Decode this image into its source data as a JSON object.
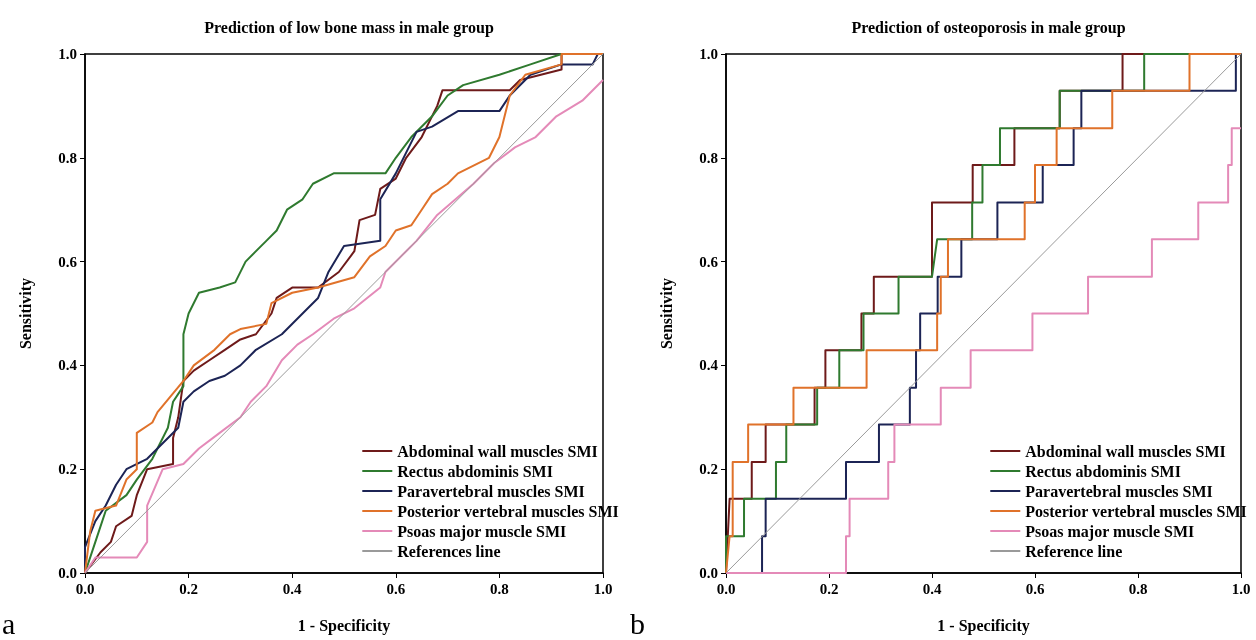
{
  "chart_data": [
    {
      "type": "line",
      "title": "Prediction of low bone mass in male group",
      "xlabel": "1 - Specificity",
      "ylabel": "Sensitivity",
      "annotations": [
        "a"
      ],
      "xlim": [
        0,
        1
      ],
      "ylim": [
        0,
        1
      ],
      "xticks": [
        {
          "value": 0,
          "label": "0.0"
        },
        {
          "value": 0.2,
          "label": "0.2"
        },
        {
          "value": 0.4,
          "label": "0.4"
        },
        {
          "value": 0.6,
          "label": "0.6"
        },
        {
          "value": 0.8,
          "label": "0.8"
        },
        {
          "value": 1,
          "label": "1.0"
        }
      ],
      "yticks": [
        {
          "value": 0,
          "label": "0.0"
        },
        {
          "value": 0.2,
          "label": "0.2"
        },
        {
          "value": 0.4,
          "label": "0.4"
        },
        {
          "value": 0.6,
          "label": "0.6"
        },
        {
          "value": 0.8,
          "label": "0.8"
        },
        {
          "value": 1,
          "label": "1.0"
        }
      ],
      "grid": false,
      "legend": "bottom right",
      "marker": "none",
      "series": [
        {
          "name": "Abdominal wall muscles SMI",
          "color": "#6e1a1a",
          "x": [
            0,
            0.03,
            0.05,
            0.06,
            0.09,
            0.1,
            0.12,
            0.17,
            0.17,
            0.18,
            0.19,
            0.21,
            0.24,
            0.27,
            0.3,
            0.33,
            0.36,
            0.37,
            0.4,
            0.45,
            0.49,
            0.52,
            0.53,
            0.56,
            0.57,
            0.6,
            0.62,
            0.65,
            0.68,
            0.69,
            0.82,
            0.84,
            0.92,
            0.92,
            1
          ],
          "values": [
            0,
            0.04,
            0.06,
            0.09,
            0.11,
            0.15,
            0.2,
            0.21,
            0.26,
            0.3,
            0.37,
            0.39,
            0.41,
            0.43,
            0.45,
            0.46,
            0.5,
            0.53,
            0.55,
            0.55,
            0.58,
            0.62,
            0.68,
            0.69,
            0.74,
            0.76,
            0.8,
            0.84,
            0.9,
            0.93,
            0.93,
            0.95,
            0.97,
            1,
            1
          ]
        },
        {
          "name": "Rectus abdominis SMI",
          "color": "#2f7a2f",
          "x": [
            0,
            0.02,
            0.04,
            0.08,
            0.1,
            0.13,
            0.16,
            0.17,
            0.19,
            0.19,
            0.2,
            0.22,
            0.26,
            0.29,
            0.31,
            0.35,
            0.37,
            0.39,
            0.42,
            0.44,
            0.48,
            0.58,
            0.6,
            0.63,
            0.67,
            0.7,
            0.73,
            0.8,
            0.86,
            0.92,
            1
          ],
          "values": [
            0,
            0.06,
            0.12,
            0.15,
            0.18,
            0.22,
            0.28,
            0.33,
            0.36,
            0.46,
            0.5,
            0.54,
            0.55,
            0.56,
            0.6,
            0.64,
            0.66,
            0.7,
            0.72,
            0.75,
            0.77,
            0.77,
            0.8,
            0.84,
            0.88,
            0.92,
            0.94,
            0.96,
            0.98,
            1,
            1
          ]
        },
        {
          "name": "Paravertebral muscles SMI",
          "color": "#1c2455",
          "x": [
            0,
            0,
            0.02,
            0.04,
            0.06,
            0.08,
            0.12,
            0.15,
            0.18,
            0.19,
            0.21,
            0.24,
            0.27,
            0.3,
            0.33,
            0.38,
            0.42,
            0.45,
            0.47,
            0.5,
            0.57,
            0.57,
            0.6,
            0.62,
            0.64,
            0.67,
            0.72,
            0.8,
            0.82,
            0.86,
            0.92,
            0.98,
            0.99,
            1
          ],
          "values": [
            0,
            0.05,
            0.1,
            0.13,
            0.17,
            0.2,
            0.22,
            0.25,
            0.28,
            0.33,
            0.35,
            0.37,
            0.38,
            0.4,
            0.43,
            0.46,
            0.5,
            0.53,
            0.58,
            0.63,
            0.64,
            0.72,
            0.77,
            0.81,
            0.85,
            0.86,
            0.89,
            0.89,
            0.92,
            0.96,
            0.98,
            0.98,
            1,
            1
          ]
        },
        {
          "name": "Posterior vertebral muscles SMI",
          "color": "#e0722a",
          "x": [
            0,
            0.01,
            0.02,
            0.06,
            0.08,
            0.1,
            0.1,
            0.13,
            0.14,
            0.19,
            0.21,
            0.25,
            0.28,
            0.3,
            0.35,
            0.36,
            0.4,
            0.45,
            0.52,
            0.55,
            0.58,
            0.6,
            0.63,
            0.65,
            0.67,
            0.7,
            0.72,
            0.78,
            0.8,
            0.81,
            0.82,
            0.85,
            0.92,
            0.92,
            1
          ],
          "values": [
            0,
            0.08,
            0.12,
            0.13,
            0.18,
            0.2,
            0.27,
            0.29,
            0.31,
            0.37,
            0.4,
            0.43,
            0.46,
            0.47,
            0.48,
            0.52,
            0.54,
            0.55,
            0.57,
            0.61,
            0.63,
            0.66,
            0.67,
            0.7,
            0.73,
            0.75,
            0.77,
            0.8,
            0.84,
            0.88,
            0.92,
            0.96,
            0.98,
            1,
            1
          ]
        },
        {
          "name": "Psoas major muscle SMI",
          "color": "#e48ab8",
          "x": [
            0,
            0.02,
            0.1,
            0.12,
            0.12,
            0.15,
            0.19,
            0.22,
            0.26,
            0.3,
            0.32,
            0.35,
            0.38,
            0.41,
            0.44,
            0.48,
            0.52,
            0.57,
            0.58,
            0.62,
            0.64,
            0.68,
            0.75,
            0.79,
            0.83,
            0.87,
            0.91,
            0.96,
            1
          ],
          "values": [
            0,
            0.03,
            0.03,
            0.06,
            0.13,
            0.2,
            0.21,
            0.24,
            0.27,
            0.3,
            0.33,
            0.36,
            0.41,
            0.44,
            0.46,
            0.49,
            0.51,
            0.55,
            0.58,
            0.62,
            0.64,
            0.69,
            0.75,
            0.79,
            0.82,
            0.84,
            0.88,
            0.91,
            0.95
          ]
        },
        {
          "name": "References line",
          "color": "#9a9a9a",
          "x": [
            0,
            1
          ],
          "values": [
            0,
            1
          ]
        }
      ]
    },
    {
      "type": "line",
      "title": "Prediction of osteoporosis in male group",
      "xlabel": "1 - Specificity",
      "ylabel": "Sensitivity",
      "annotations": [
        "b"
      ],
      "xlim": [
        0,
        1
      ],
      "ylim": [
        0,
        1
      ],
      "xticks": [
        {
          "value": 0,
          "label": "0.0"
        },
        {
          "value": 0.2,
          "label": "0.2"
        },
        {
          "value": 0.4,
          "label": "0.4"
        },
        {
          "value": 0.6,
          "label": "0.6"
        },
        {
          "value": 0.8,
          "label": "0.8"
        },
        {
          "value": 1,
          "label": "1.0"
        }
      ],
      "yticks": [
        {
          "value": 0,
          "label": "0.0"
        },
        {
          "value": 0.2,
          "label": "0.2"
        },
        {
          "value": 0.4,
          "label": "0.4"
        },
        {
          "value": 0.6,
          "label": "0.6"
        },
        {
          "value": 0.8,
          "label": "0.8"
        },
        {
          "value": 1,
          "label": "1.0"
        }
      ],
      "grid": false,
      "legend": "bottom right",
      "marker": "none",
      "series": [
        {
          "name": "Abdominal wall muscles SMI",
          "color": "#6e1a1a",
          "x": [
            0,
            0.007,
            0.05,
            0.05,
            0.077,
            0.077,
            0.172,
            0.172,
            0.193,
            0.193,
            0.263,
            0.263,
            0.287,
            0.287,
            0.4,
            0.4,
            0.479,
            0.479,
            0.56,
            0.56,
            0.648,
            0.648,
            0.77,
            0.77,
            1
          ],
          "values": [
            0,
            0.143,
            0.143,
            0.214,
            0.214,
            0.286,
            0.286,
            0.357,
            0.357,
            0.429,
            0.429,
            0.5,
            0.5,
            0.571,
            0.571,
            0.714,
            0.714,
            0.786,
            0.786,
            0.857,
            0.857,
            0.929,
            0.929,
            1,
            1
          ]
        },
        {
          "name": "Rectus abdominis SMI",
          "color": "#2f7a2f",
          "x": [
            0,
            0,
            0.035,
            0.035,
            0.097,
            0.097,
            0.117,
            0.117,
            0.177,
            0.177,
            0.22,
            0.22,
            0.267,
            0.267,
            0.335,
            0.335,
            0.4,
            0.41,
            0.478,
            0.478,
            0.498,
            0.498,
            0.532,
            0.532,
            0.648,
            0.648,
            0.812,
            0.812,
            1
          ],
          "values": [
            0,
            0.071,
            0.071,
            0.143,
            0.143,
            0.214,
            0.214,
            0.286,
            0.286,
            0.357,
            0.357,
            0.429,
            0.429,
            0.5,
            0.5,
            0.571,
            0.571,
            0.643,
            0.643,
            0.714,
            0.714,
            0.786,
            0.786,
            0.857,
            0.857,
            0.929,
            0.929,
            1,
            1
          ]
        },
        {
          "name": "Paravertebral muscles SMI",
          "color": "#1c2455",
          "x": [
            0,
            0.07,
            0.07,
            0.077,
            0.077,
            0.233,
            0.233,
            0.297,
            0.297,
            0.357,
            0.357,
            0.369,
            0.369,
            0.377,
            0.377,
            0.411,
            0.411,
            0.457,
            0.457,
            0.527,
            0.527,
            0.615,
            0.615,
            0.675,
            0.675,
            0.69,
            0.69,
            0.99,
            0.99,
            1
          ],
          "values": [
            0,
            0,
            0.071,
            0.071,
            0.143,
            0.143,
            0.214,
            0.214,
            0.286,
            0.286,
            0.357,
            0.357,
            0.429,
            0.429,
            0.5,
            0.5,
            0.571,
            0.571,
            0.643,
            0.643,
            0.714,
            0.714,
            0.786,
            0.786,
            0.857,
            0.857,
            0.929,
            0.929,
            1,
            1
          ]
        },
        {
          "name": "Posterior vertebral muscles SMI",
          "color": "#e0722a",
          "x": [
            0,
            0.007,
            0.013,
            0.013,
            0.043,
            0.043,
            0.131,
            0.131,
            0.273,
            0.273,
            0.41,
            0.41,
            0.417,
            0.417,
            0.431,
            0.431,
            0.58,
            0.58,
            0.6,
            0.6,
            0.642,
            0.642,
            0.75,
            0.75,
            0.9,
            0.9,
            1
          ],
          "values": [
            0,
            0.071,
            0.071,
            0.214,
            0.214,
            0.286,
            0.286,
            0.357,
            0.357,
            0.429,
            0.429,
            0.5,
            0.5,
            0.571,
            0.571,
            0.643,
            0.643,
            0.714,
            0.714,
            0.786,
            0.786,
            0.857,
            0.857,
            0.929,
            0.929,
            1,
            1
          ]
        },
        {
          "name": "Psoas major muscle SMI",
          "color": "#e48ab8",
          "x": [
            0,
            0.233,
            0.233,
            0.24,
            0.24,
            0.315,
            0.315,
            0.327,
            0.327,
            0.417,
            0.417,
            0.475,
            0.475,
            0.595,
            0.595,
            0.703,
            0.703,
            0.827,
            0.827,
            0.917,
            0.917,
            0.975,
            0.975,
            0.982,
            0.982,
            1
          ],
          "values": [
            0,
            0,
            0.071,
            0.071,
            0.143,
            0.143,
            0.214,
            0.214,
            0.286,
            0.286,
            0.357,
            0.357,
            0.429,
            0.429,
            0.5,
            0.5,
            0.571,
            0.571,
            0.643,
            0.643,
            0.714,
            0.714,
            0.786,
            0.786,
            0.857,
            0.857
          ]
        },
        {
          "name": "Reference line",
          "color": "#9a9a9a",
          "x": [
            0,
            1
          ],
          "values": [
            0,
            1
          ]
        }
      ]
    }
  ]
}
